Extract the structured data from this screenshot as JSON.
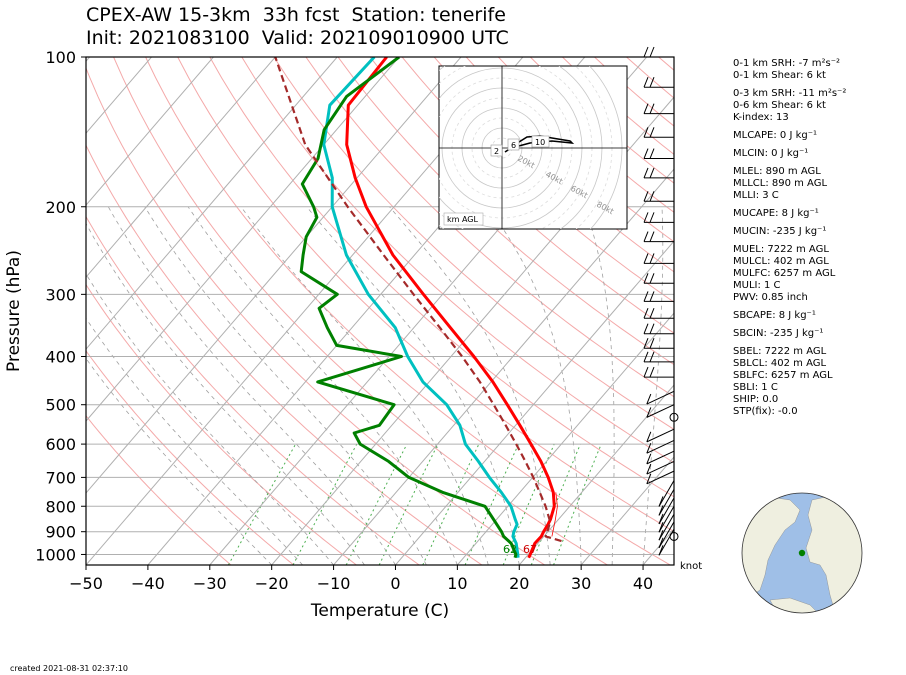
{
  "title": {
    "line1": "CPEX-AW 15-3km  33h fcst  Station: tenerife",
    "line2": "Init: 2021083100  Valid: 202109010900 UTC"
  },
  "chart_data": {
    "type": "skew-t",
    "xlabel": "Temperature (C)",
    "ylabel": "Pressure (hPa)",
    "xlim": [
      -50,
      45
    ],
    "ylim": [
      1050,
      100
    ],
    "x_ticks": [
      "−50",
      "−40",
      "−30",
      "−20",
      "−10",
      "0",
      "10",
      "20",
      "30",
      "40"
    ],
    "y_ticks": [
      "100",
      "200",
      "300",
      "400",
      "500",
      "600",
      "700",
      "800",
      "900",
      "1000"
    ],
    "y_scale": "log",
    "grid": true,
    "series": [
      {
        "color": "#ff0000",
        "points": [
          [
            1015,
            20.5
          ],
          [
            1000,
            20.3
          ],
          [
            950,
            19.5
          ],
          [
            920,
            19.6
          ],
          [
            900,
            19.3
          ],
          [
            870,
            19
          ],
          [
            850,
            18.7
          ],
          [
            800,
            17.5
          ],
          [
            750,
            15.4
          ],
          [
            700,
            12.5
          ],
          [
            650,
            9.1
          ],
          [
            600,
            5.1
          ],
          [
            550,
            0.7
          ],
          [
            500,
            -4.2
          ],
          [
            450,
            -9.7
          ],
          [
            400,
            -16.3
          ],
          [
            350,
            -24.1
          ],
          [
            300,
            -33.1
          ],
          [
            250,
            -43.5
          ],
          [
            200,
            -54.5
          ],
          [
            175,
            -60.3
          ],
          [
            150,
            -66.3
          ],
          [
            125,
            -71.5
          ],
          [
            100,
            -72
          ]
        ]
      },
      {
        "color": "#00c0c0",
        "points": [
          [
            1015,
            18.8
          ],
          [
            1000,
            18.3
          ],
          [
            950,
            16.5
          ],
          [
            920,
            15
          ],
          [
            900,
            14.5
          ],
          [
            870,
            14
          ],
          [
            850,
            13
          ],
          [
            800,
            10.5
          ],
          [
            750,
            7
          ],
          [
            700,
            3
          ],
          [
            650,
            -1
          ],
          [
            600,
            -5.5
          ],
          [
            550,
            -9
          ],
          [
            500,
            -14
          ],
          [
            450,
            -21
          ],
          [
            400,
            -27
          ],
          [
            350,
            -33
          ],
          [
            300,
            -42
          ],
          [
            250,
            -51
          ],
          [
            200,
            -60
          ],
          [
            175,
            -64
          ],
          [
            150,
            -70
          ],
          [
            125,
            -74.5
          ],
          [
            100,
            -74
          ]
        ]
      },
      {
        "color": "#008000",
        "points": [
          [
            1015,
            18.3
          ],
          [
            1000,
            18
          ],
          [
            950,
            15.7
          ],
          [
            920,
            13.5
          ],
          [
            900,
            12.5
          ],
          [
            850,
            9.5
          ],
          [
            800,
            6.3
          ],
          [
            750,
            -2.5
          ],
          [
            700,
            -10
          ],
          [
            650,
            -15.5
          ],
          [
            600,
            -22.5
          ],
          [
            570,
            -25
          ],
          [
            550,
            -22
          ],
          [
            500,
            -22.5
          ],
          [
            450,
            -38
          ],
          [
            400,
            -28
          ],
          [
            380,
            -40
          ],
          [
            350,
            -44
          ],
          [
            320,
            -48
          ],
          [
            300,
            -47
          ],
          [
            270,
            -56
          ],
          [
            250,
            -58
          ],
          [
            230,
            -60
          ],
          [
            210,
            -61
          ],
          [
            200,
            -63
          ],
          [
            180,
            -68
          ],
          [
            160,
            -69
          ],
          [
            140,
            -72
          ],
          [
            120,
            -73
          ],
          [
            100,
            -70
          ]
        ]
      },
      {
        "color": "#a52a2a",
        "dashed": true,
        "points": [
          [
            940,
            23.5
          ],
          [
            920,
            20.3
          ],
          [
            900,
            19.9
          ],
          [
            860,
            19
          ],
          [
            800,
            16.1
          ],
          [
            750,
            13.2
          ],
          [
            700,
            10.1
          ],
          [
            650,
            6.6
          ],
          [
            600,
            2.7
          ],
          [
            550,
            -1.6
          ],
          [
            500,
            -6.4
          ],
          [
            450,
            -11.8
          ],
          [
            400,
            -18.2
          ],
          [
            350,
            -25.8
          ],
          [
            300,
            -34.7
          ],
          [
            250,
            -45
          ],
          [
            200,
            -57.5
          ],
          [
            150,
            -73
          ],
          [
            100,
            -90
          ]
        ]
      }
    ],
    "bottom_labels": [
      {
        "text": "62",
        "color": "#008000"
      },
      {
        "text": "67",
        "color": "#cc0000"
      }
    ],
    "wind_unit": "knot",
    "hodograph": {
      "label": "km AGL",
      "ring_labels": [
        "20kt",
        "40kt",
        "60kt",
        "80kt"
      ],
      "height_labels": [
        "2",
        "6",
        "10"
      ]
    }
  },
  "stats": [
    "0-1 km SRH: -7 m²s⁻²",
    "0-1 km Shear: 6 kt",
    "0-3 km SRH: -11 m²s⁻²",
    "0-6 km Shear: 6 kt",
    "K-index: 13",
    "MLCAPE: 0 J kg⁻¹",
    "MLCIN: 0 J kg⁻¹",
    "MLEL: 890 m AGL",
    "MLLCL: 890 m AGL",
    "MLLI: 3 C",
    "MUCAPE: 8 J kg⁻¹",
    "MUCIN: -235 J kg⁻¹",
    "MUEL: 7222 m AGL",
    "MULCL: 402 m AGL",
    "MULFC: 6257 m AGL",
    "MULI: 1 C",
    "PWV: 0.85 inch",
    "SBCAPE: 8 J kg⁻¹",
    "SBCIN: -235 J kg⁻¹",
    "SBEL: 7222 m AGL",
    "SBLCL: 402 m AGL",
    "SBLFC: 6257 m AGL",
    "SBLI: 1 C",
    "SHIP: 0.0",
    "STP(fix): -0.0"
  ],
  "created": "created 2021-08-31 02:37:10",
  "colors": {
    "temperature": "#ff0000",
    "dewpoint": "#008000",
    "wetbulb": "#00c0c0",
    "parcel": "#a52a2a",
    "ocean": "#9fbfe7",
    "land": "#efefe0"
  }
}
